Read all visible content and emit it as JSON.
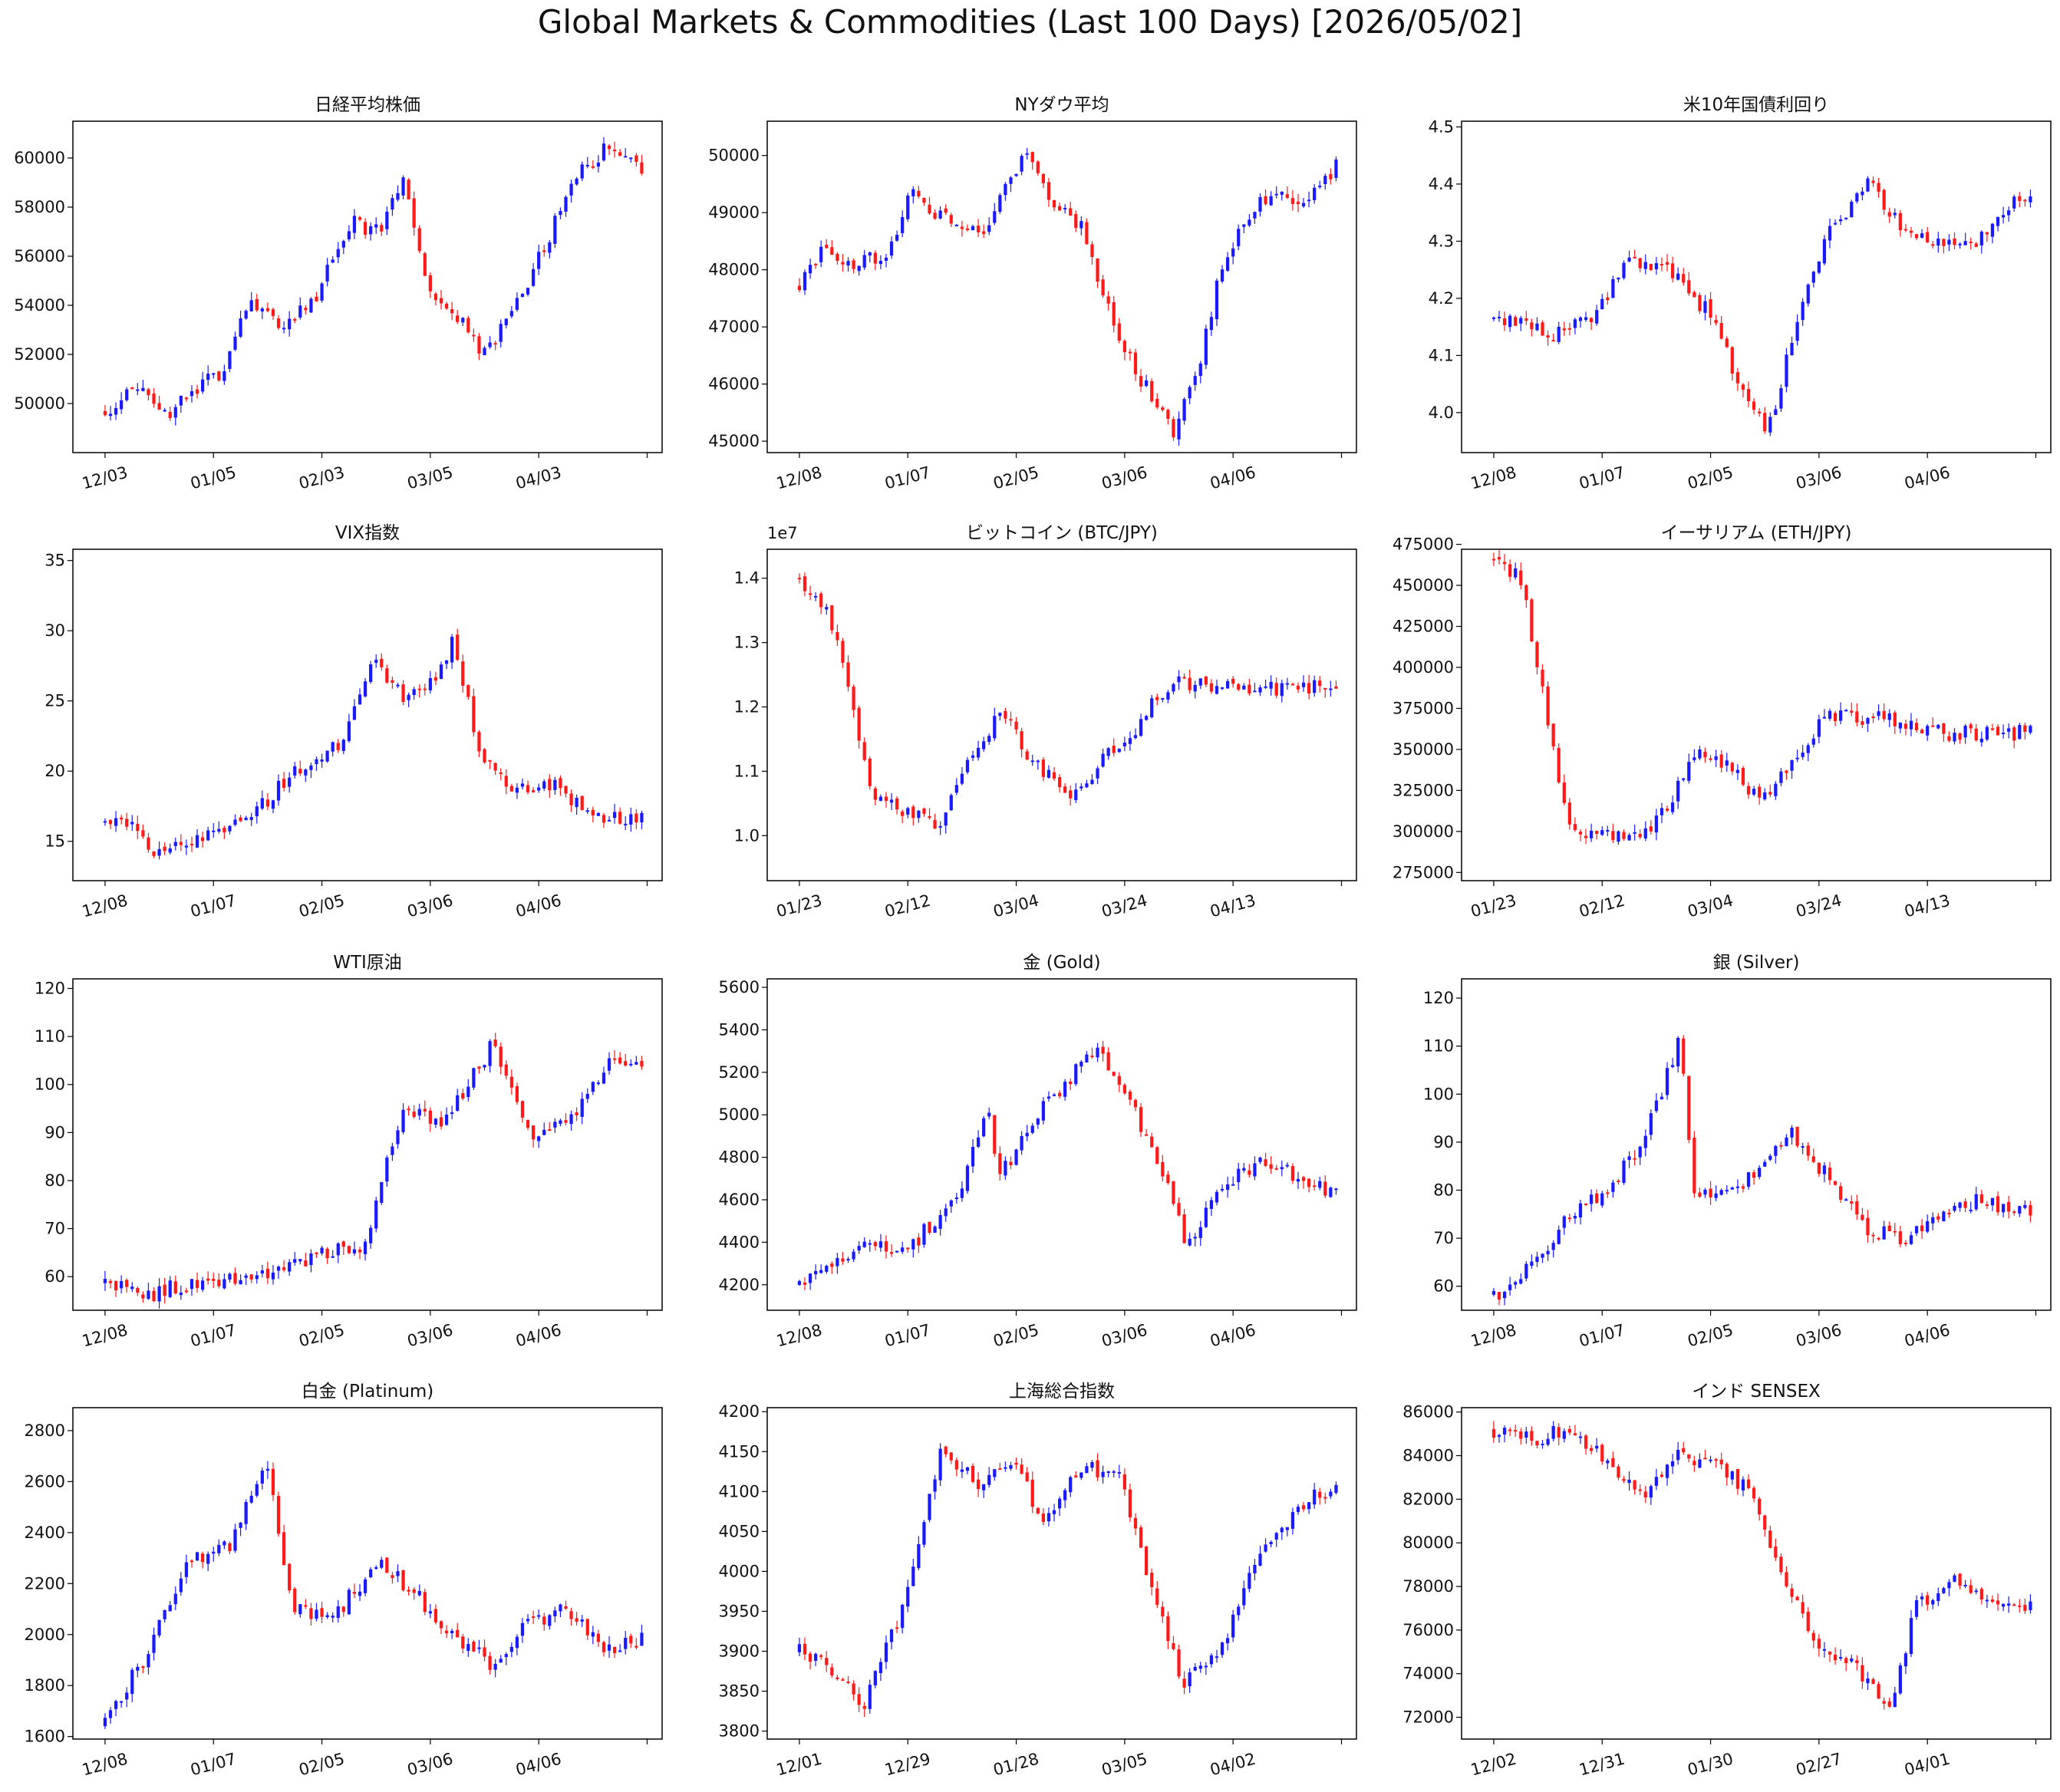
{
  "figure": {
    "title": "Global Markets & Commodities (Last 100 Days) [2026/05/02]"
  },
  "colors": {
    "up": "#1a1aff",
    "down": "#ff1a1a",
    "frame": "#000000"
  },
  "chart_data": [
    {
      "type": "candlestick",
      "title": "日経平均株価",
      "ylim": [
        48000,
        61500
      ],
      "yticks": [
        "50000",
        "52000",
        "54000",
        "56000",
        "58000",
        "60000"
      ],
      "ytick_values": [
        50000,
        52000,
        54000,
        56000,
        58000,
        60000
      ],
      "xticks": [
        "12/03",
        "01/05",
        "02/03",
        "03/05",
        "04/03"
      ],
      "series": {
        "n": 100,
        "anchors": [
          [
            0,
            49700
          ],
          [
            5,
            50700
          ],
          [
            10,
            49400
          ],
          [
            15,
            50400
          ],
          [
            20,
            51300
          ],
          [
            24,
            54100
          ],
          [
            30,
            53100
          ],
          [
            36,
            54300
          ],
          [
            42,
            57400
          ],
          [
            47,
            57000
          ],
          [
            51,
            59000
          ],
          [
            56,
            54200
          ],
          [
            60,
            53600
          ],
          [
            65,
            52000
          ],
          [
            70,
            53700
          ],
          [
            76,
            56700
          ],
          [
            80,
            59000
          ],
          [
            86,
            60400
          ],
          [
            92,
            59400
          ]
        ],
        "x_len": 92
      }
    },
    {
      "type": "candlestick",
      "title": "NYダウ平均",
      "ylim": [
        44800,
        50600
      ],
      "yticks": [
        "45000",
        "46000",
        "47000",
        "48000",
        "49000",
        "50000"
      ],
      "ytick_values": [
        45000,
        46000,
        47000,
        48000,
        49000,
        50000
      ],
      "xticks": [
        "12/08",
        "01/07",
        "02/05",
        "03/06",
        "04/06"
      ],
      "series": {
        "n": 100,
        "anchors": [
          [
            0,
            47700
          ],
          [
            4,
            48500
          ],
          [
            8,
            48000
          ],
          [
            14,
            48300
          ],
          [
            18,
            49400
          ],
          [
            24,
            48800
          ],
          [
            30,
            48700
          ],
          [
            36,
            50100
          ],
          [
            40,
            49300
          ],
          [
            45,
            48800
          ],
          [
            50,
            47200
          ],
          [
            54,
            46200
          ],
          [
            60,
            45200
          ],
          [
            64,
            46300
          ],
          [
            68,
            48200
          ],
          [
            74,
            49300
          ],
          [
            80,
            49200
          ],
          [
            86,
            49800
          ]
        ],
        "x_len": 86
      }
    },
    {
      "type": "candlestick",
      "title": "米10年国債利回り",
      "ylim": [
        3.93,
        4.51
      ],
      "yticks": [
        "4.0",
        "4.1",
        "4.2",
        "4.3",
        "4.4",
        "4.5"
      ],
      "ytick_values": [
        4.0,
        4.1,
        4.2,
        4.3,
        4.4,
        4.5
      ],
      "xticks": [
        "12/08",
        "01/07",
        "02/05",
        "03/06",
        "04/06"
      ],
      "series": {
        "n": 100,
        "anchors": [
          [
            0,
            4.17
          ],
          [
            5,
            4.15
          ],
          [
            10,
            4.14
          ],
          [
            16,
            4.17
          ],
          [
            22,
            4.27
          ],
          [
            28,
            4.25
          ],
          [
            34,
            4.18
          ],
          [
            40,
            4.04
          ],
          [
            44,
            3.97
          ],
          [
            48,
            4.14
          ],
          [
            54,
            4.32
          ],
          [
            60,
            4.4
          ],
          [
            66,
            4.32
          ],
          [
            72,
            4.29
          ],
          [
            78,
            4.3
          ],
          [
            84,
            4.38
          ]
        ],
        "x_len": 86
      }
    },
    {
      "type": "candlestick",
      "title": "VIX指数",
      "ylim": [
        12.2,
        35.8
      ],
      "yticks": [
        "15",
        "20",
        "25",
        "30",
        "35"
      ],
      "ytick_values": [
        15,
        20,
        25,
        30,
        35
      ],
      "xticks": [
        "12/08",
        "01/07",
        "02/05",
        "03/06",
        "04/06"
      ],
      "series": {
        "n": 100,
        "anchors": [
          [
            0,
            16.5
          ],
          [
            4,
            16.4
          ],
          [
            8,
            14.0
          ],
          [
            14,
            15.0
          ],
          [
            20,
            16.0
          ],
          [
            26,
            18.0
          ],
          [
            32,
            20.5
          ],
          [
            38,
            22.0
          ],
          [
            43,
            28.0
          ],
          [
            48,
            25.0
          ],
          [
            52,
            26.0
          ],
          [
            56,
            29.5
          ],
          [
            60,
            21.0
          ],
          [
            66,
            18.5
          ],
          [
            72,
            19.0
          ],
          [
            78,
            17.0
          ],
          [
            86,
            16.5
          ]
        ],
        "x_len": 86
      }
    },
    {
      "type": "candlestick",
      "title": "ビットコイン (BTC/JPY)",
      "ylim": [
        9300000.0,
        14450000.0
      ],
      "offset_text": "1e7",
      "yticks": [
        "1.0",
        "1.1",
        "1.2",
        "1.3",
        "1.4"
      ],
      "ytick_values": [
        10000000.0,
        11000000.0,
        12000000.0,
        13000000.0,
        14000000.0
      ],
      "xticks": [
        "01/23",
        "02/12",
        "03/04",
        "03/24",
        "04/13"
      ],
      "series": {
        "n": 100,
        "anchors": [
          [
            0,
            14000000.0
          ],
          [
            5,
            13600000.0
          ],
          [
            10,
            12000000.0
          ],
          [
            14,
            10500000.0
          ],
          [
            20,
            10400000.0
          ],
          [
            26,
            10200000.0
          ],
          [
            32,
            11300000.0
          ],
          [
            38,
            11900000.0
          ],
          [
            44,
            11100000.0
          ],
          [
            50,
            10600000.0
          ],
          [
            56,
            11100000.0
          ],
          [
            62,
            11600000.0
          ],
          [
            68,
            12300000.0
          ],
          [
            74,
            12400000.0
          ],
          [
            80,
            12300000.0
          ]
        ],
        "x_len": 100
      }
    },
    {
      "type": "candlestick",
      "title": "イーサリアム (ETH/JPY)",
      "ylim": [
        270000,
        472000
      ],
      "yticks": [
        "275000",
        "300000",
        "325000",
        "350000",
        "375000",
        "400000",
        "425000",
        "450000",
        "475000"
      ],
      "ytick_values": [
        275000,
        300000,
        325000,
        350000,
        375000,
        400000,
        425000,
        450000,
        475000
      ],
      "xticks": [
        "01/23",
        "02/12",
        "03/04",
        "03/24",
        "04/13"
      ],
      "series": {
        "n": 100,
        "anchors": [
          [
            0,
            465000
          ],
          [
            5,
            455000
          ],
          [
            10,
            370000
          ],
          [
            14,
            300000
          ],
          [
            20,
            300000
          ],
          [
            26,
            295000
          ],
          [
            32,
            312000
          ],
          [
            38,
            350000
          ],
          [
            44,
            340000
          ],
          [
            50,
            318000
          ],
          [
            56,
            345000
          ],
          [
            62,
            372000
          ],
          [
            68,
            370000
          ],
          [
            74,
            368000
          ],
          [
            80,
            360000
          ]
        ],
        "x_len": 100
      }
    },
    {
      "type": "candlestick",
      "title": "WTI原油",
      "ylim": [
        53,
        122
      ],
      "yticks": [
        "60",
        "70",
        "80",
        "90",
        "100",
        "110",
        "120"
      ],
      "ytick_values": [
        60,
        70,
        80,
        90,
        100,
        110,
        120
      ],
      "xticks": [
        "12/08",
        "01/07",
        "02/05",
        "03/06",
        "04/06"
      ],
      "series": {
        "n": 100,
        "anchors": [
          [
            0,
            59
          ],
          [
            6,
            56
          ],
          [
            12,
            58
          ],
          [
            18,
            59
          ],
          [
            24,
            60
          ],
          [
            30,
            63
          ],
          [
            36,
            65
          ],
          [
            42,
            66
          ],
          [
            44,
            80
          ],
          [
            48,
            95
          ],
          [
            54,
            92
          ],
          [
            58,
            100
          ],
          [
            62,
            108
          ],
          [
            68,
            90
          ],
          [
            74,
            92
          ],
          [
            80,
            104
          ],
          [
            86,
            104
          ]
        ],
        "x_len": 86
      }
    },
    {
      "type": "candlestick",
      "title": "金 (Gold)",
      "ylim": [
        4080,
        5640
      ],
      "yticks": [
        "4200",
        "4400",
        "4600",
        "4800",
        "5000",
        "5200",
        "5400",
        "5600"
      ],
      "ytick_values": [
        4200,
        4400,
        4600,
        4800,
        5000,
        5200,
        5400,
        5600
      ],
      "xticks": [
        "12/08",
        "01/07",
        "02/05",
        "03/06",
        "04/06"
      ],
      "series": {
        "n": 100,
        "anchors": [
          [
            0,
            4200
          ],
          [
            6,
            4320
          ],
          [
            12,
            4400
          ],
          [
            16,
            4330
          ],
          [
            20,
            4450
          ],
          [
            26,
            4650
          ],
          [
            30,
            5050
          ],
          [
            32,
            4700
          ],
          [
            38,
            5000
          ],
          [
            44,
            5200
          ],
          [
            48,
            5300
          ],
          [
            54,
            5000
          ],
          [
            60,
            4600
          ],
          [
            62,
            4400
          ],
          [
            68,
            4650
          ],
          [
            74,
            4800
          ],
          [
            80,
            4700
          ],
          [
            86,
            4620
          ]
        ],
        "x_len": 86
      }
    },
    {
      "type": "candlestick",
      "title": "銀 (Silver)",
      "ylim": [
        55,
        124
      ],
      "yticks": [
        "60",
        "70",
        "80",
        "90",
        "100",
        "110",
        "120"
      ],
      "ytick_values": [
        60,
        70,
        80,
        90,
        100,
        110,
        120
      ],
      "xticks": [
        "12/08",
        "01/07",
        "02/05",
        "03/06",
        "04/06"
      ],
      "series": {
        "n": 100,
        "anchors": [
          [
            0,
            58
          ],
          [
            6,
            64
          ],
          [
            12,
            74
          ],
          [
            18,
            80
          ],
          [
            24,
            90
          ],
          [
            30,
            112
          ],
          [
            32,
            80
          ],
          [
            38,
            80
          ],
          [
            44,
            86
          ],
          [
            48,
            92
          ],
          [
            54,
            82
          ],
          [
            60,
            72
          ],
          [
            66,
            70
          ],
          [
            72,
            76
          ],
          [
            78,
            78
          ],
          [
            86,
            75
          ]
        ],
        "x_len": 86
      }
    },
    {
      "type": "candlestick",
      "title": "白金 (Platinum)",
      "ylim": [
        1590,
        2890
      ],
      "yticks": [
        "1600",
        "1800",
        "2000",
        "2200",
        "2400",
        "2600",
        "2800"
      ],
      "ytick_values": [
        1600,
        1800,
        2000,
        2200,
        2400,
        2600,
        2800
      ],
      "xticks": [
        "12/08",
        "01/07",
        "02/05",
        "03/06",
        "04/06"
      ],
      "series": {
        "n": 100,
        "anchors": [
          [
            0,
            1650
          ],
          [
            6,
            1900
          ],
          [
            10,
            2100
          ],
          [
            14,
            2300
          ],
          [
            20,
            2350
          ],
          [
            26,
            2680
          ],
          [
            30,
            2100
          ],
          [
            36,
            2050
          ],
          [
            44,
            2300
          ],
          [
            50,
            2150
          ],
          [
            56,
            2000
          ],
          [
            62,
            1880
          ],
          [
            68,
            2050
          ],
          [
            74,
            2100
          ],
          [
            80,
            1950
          ],
          [
            86,
            1980
          ]
        ],
        "x_len": 86
      }
    },
    {
      "type": "candlestick",
      "title": "上海総合指数",
      "ylim": [
        3790,
        4205
      ],
      "yticks": [
        "3800",
        "3850",
        "3900",
        "3950",
        "4000",
        "4050",
        "4100",
        "4150",
        "4200"
      ],
      "ytick_values": [
        3800,
        3850,
        3900,
        3950,
        4000,
        4050,
        4100,
        4150,
        4200
      ],
      "xticks": [
        "12/01",
        "12/29",
        "01/28",
        "03/05",
        "04/02"
      ],
      "series": {
        "n": 100,
        "anchors": [
          [
            0,
            3900
          ],
          [
            6,
            3870
          ],
          [
            10,
            3830
          ],
          [
            16,
            3950
          ],
          [
            22,
            4150
          ],
          [
            28,
            4110
          ],
          [
            34,
            4140
          ],
          [
            38,
            4060
          ],
          [
            44,
            4130
          ],
          [
            50,
            4120
          ],
          [
            56,
            3960
          ],
          [
            60,
            3860
          ],
          [
            66,
            3900
          ],
          [
            72,
            4020
          ],
          [
            78,
            4080
          ],
          [
            84,
            4110
          ]
        ],
        "x_len": 84
      }
    },
    {
      "type": "candlestick",
      "title": "インド SENSEX",
      "ylim": [
        71000,
        86200
      ],
      "yticks": [
        "72000",
        "74000",
        "76000",
        "78000",
        "80000",
        "82000",
        "84000",
        "86000"
      ],
      "ytick_values": [
        72000,
        74000,
        76000,
        78000,
        80000,
        82000,
        84000,
        86000
      ],
      "xticks": [
        "12/02",
        "12/31",
        "01/30",
        "02/27",
        "04/01"
      ],
      "series": {
        "n": 100,
        "anchors": [
          [
            0,
            85200
          ],
          [
            6,
            84700
          ],
          [
            12,
            85400
          ],
          [
            18,
            83500
          ],
          [
            24,
            82000
          ],
          [
            28,
            84000
          ],
          [
            34,
            83600
          ],
          [
            40,
            82500
          ],
          [
            44,
            79500
          ],
          [
            50,
            75500
          ],
          [
            56,
            74500
          ],
          [
            62,
            72500
          ],
          [
            66,
            77000
          ],
          [
            72,
            78500
          ],
          [
            78,
            77000
          ],
          [
            84,
            77000
          ]
        ],
        "x_len": 84
      }
    }
  ]
}
